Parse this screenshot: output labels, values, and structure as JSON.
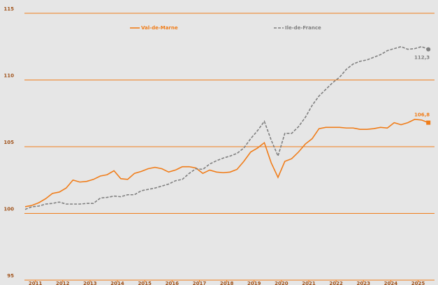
{
  "chart_data": {
    "type": "line",
    "x": [
      2011.125,
      2011.375,
      2011.625,
      2011.875,
      2012.125,
      2012.375,
      2012.625,
      2012.875,
      2013.125,
      2013.375,
      2013.625,
      2013.875,
      2014.125,
      2014.375,
      2014.625,
      2014.875,
      2015.125,
      2015.375,
      2015.625,
      2015.875,
      2016.125,
      2016.375,
      2016.625,
      2016.875,
      2017.125,
      2017.375,
      2017.625,
      2017.875,
      2018.125,
      2018.375,
      2018.625,
      2018.875,
      2019.125,
      2019.375,
      2019.625,
      2019.875,
      2020.125,
      2020.375,
      2020.625,
      2020.875,
      2021.125,
      2021.375,
      2021.625,
      2021.875,
      2022.125,
      2022.375,
      2022.625,
      2022.875,
      2023.125,
      2023.375,
      2023.625,
      2023.875,
      2024.125,
      2024.375,
      2024.625,
      2024.875,
      2025.125,
      2025.375,
      2025.625,
      2025.875
    ],
    "series": [
      {
        "name": "Val-de-Marne",
        "color": "#f07d1a",
        "dashed": false,
        "end_marker": "square",
        "values": [
          100.5,
          100.6,
          100.8,
          101.1,
          101.5,
          101.6,
          101.9,
          102.5,
          102.35,
          102.4,
          102.55,
          102.8,
          102.9,
          103.2,
          102.6,
          102.55,
          103.0,
          103.15,
          103.35,
          103.45,
          103.35,
          103.1,
          103.25,
          103.5,
          103.5,
          103.4,
          103.0,
          103.25,
          103.1,
          103.05,
          103.1,
          103.3,
          103.9,
          104.6,
          104.9,
          105.3,
          103.8,
          102.7,
          103.9,
          104.1,
          104.6,
          105.2,
          105.6,
          106.35,
          106.45,
          106.45,
          106.45,
          106.4,
          106.4,
          106.3,
          106.3,
          106.35,
          106.45,
          106.4,
          106.8,
          106.65,
          106.8,
          107.05,
          107.0,
          106.8
        ],
        "end_label": "106,8"
      },
      {
        "name": "Ile-de-France",
        "color": "#7f7f7f",
        "dashed": true,
        "end_marker": "circle",
        "values": [
          100.3,
          100.5,
          100.55,
          100.7,
          100.75,
          100.85,
          100.7,
          100.7,
          100.7,
          100.75,
          100.75,
          101.15,
          101.2,
          101.3,
          101.25,
          101.4,
          101.4,
          101.7,
          101.8,
          101.9,
          102.05,
          102.2,
          102.45,
          102.55,
          103.0,
          103.35,
          103.3,
          103.7,
          103.95,
          104.15,
          104.3,
          104.5,
          104.9,
          105.6,
          106.2,
          106.9,
          105.5,
          104.3,
          106.0,
          106.0,
          106.5,
          107.2,
          108.1,
          108.8,
          109.3,
          109.8,
          110.2,
          110.8,
          111.2,
          111.4,
          111.5,
          111.7,
          111.9,
          112.2,
          112.35,
          112.5,
          112.3,
          112.35,
          112.5,
          112.3
        ],
        "end_label": "112,3"
      }
    ],
    "xlim": [
      2011.1,
      2026.1
    ],
    "xticks": [
      {
        "value": 2011.5,
        "label": "2011"
      },
      {
        "value": 2012.5,
        "label": "2012"
      },
      {
        "value": 2013.5,
        "label": "2013"
      },
      {
        "value": 2014.5,
        "label": "2014"
      },
      {
        "value": 2015.5,
        "label": "2015"
      },
      {
        "value": 2016.5,
        "label": "2016"
      },
      {
        "value": 2017.5,
        "label": "2017"
      },
      {
        "value": 2018.5,
        "label": "2018"
      },
      {
        "value": 2019.5,
        "label": "2019"
      },
      {
        "value": 2020.5,
        "label": "2020"
      },
      {
        "value": 2021.5,
        "label": "2021"
      },
      {
        "value": 2022.5,
        "label": "2022"
      },
      {
        "value": 2023.5,
        "label": "2023"
      },
      {
        "value": 2024.5,
        "label": "2024"
      },
      {
        "value": 2025.5,
        "label": "2025"
      }
    ],
    "ylim": [
      95,
      115
    ],
    "yticks": [
      95,
      100,
      105,
      110,
      115
    ],
    "grid": true,
    "grid_color": "#f07d1a",
    "legend": "top"
  }
}
